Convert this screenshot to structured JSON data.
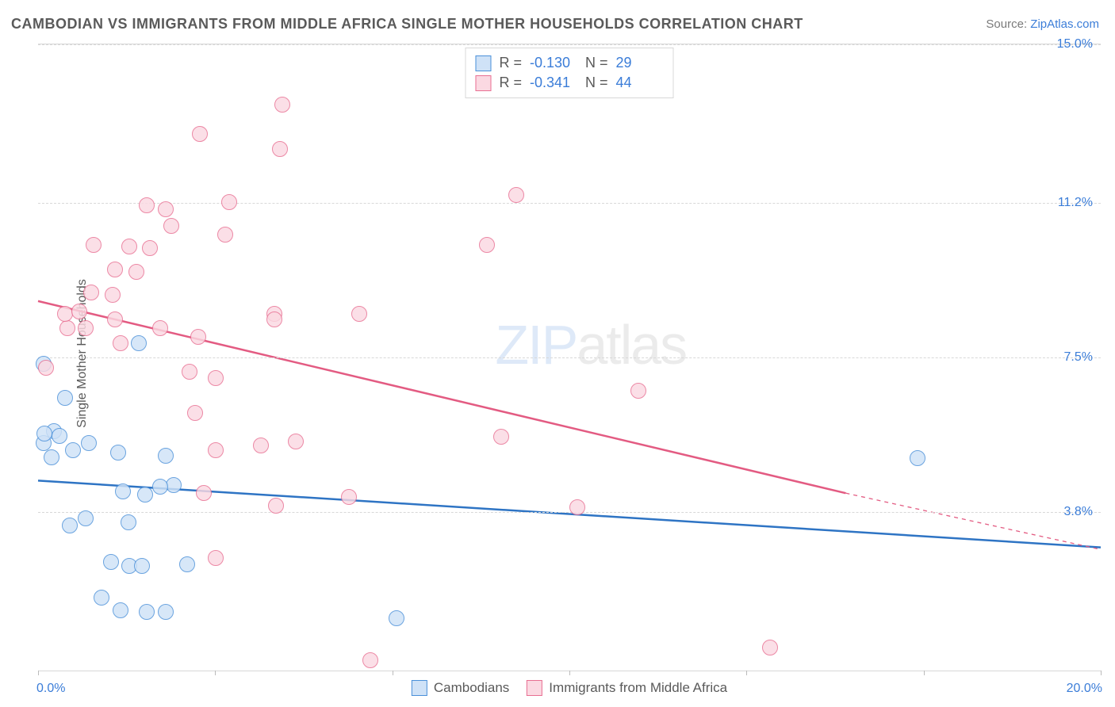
{
  "title": "CAMBODIAN VS IMMIGRANTS FROM MIDDLE AFRICA SINGLE MOTHER HOUSEHOLDS CORRELATION CHART",
  "source_label": "Source: ",
  "source_name": "ZipAtlas.com",
  "ylabel": "Single Mother Households",
  "watermark_a": "ZIP",
  "watermark_b": "atlas",
  "chart": {
    "type": "scatter",
    "xlim": [
      0.0,
      20.0
    ],
    "ylim": [
      0.0,
      15.0
    ],
    "xmin_label": "0.0%",
    "xmax_label": "20.0%",
    "yticks": [
      3.8,
      7.5,
      11.2,
      15.0
    ],
    "ytick_labels": [
      "3.8%",
      "7.5%",
      "11.2%",
      "15.0%"
    ],
    "xtick_marks": [
      0,
      3.33,
      6.67,
      10.0,
      13.33,
      16.67,
      20.0
    ],
    "background_color": "#ffffff",
    "grid_color": "#d8d8d8"
  },
  "series": [
    {
      "key": "blue",
      "name": "Cambodians",
      "fill": "#cfe2f7",
      "stroke": "#4a90d9",
      "line_color": "#2e74c4",
      "r_label": "R =",
      "r_value": "-0.130",
      "n_label": "N =",
      "n_value": "29",
      "marker_radius": 10,
      "line_width": 2.5,
      "trend": {
        "x1": 0.0,
        "y1": 4.55,
        "x2": 20.0,
        "y2": 2.95
      },
      "points": [
        [
          0.1,
          7.35
        ],
        [
          0.5,
          6.53
        ],
        [
          0.3,
          5.73
        ],
        [
          0.1,
          5.45
        ],
        [
          0.4,
          5.62
        ],
        [
          0.65,
          5.28
        ],
        [
          0.95,
          5.45
        ],
        [
          1.5,
          5.22
        ],
        [
          0.25,
          5.1
        ],
        [
          0.12,
          5.68
        ],
        [
          2.4,
          5.15
        ],
        [
          2.55,
          4.45
        ],
        [
          2.3,
          4.4
        ],
        [
          1.6,
          4.3
        ],
        [
          2.02,
          4.22
        ],
        [
          0.9,
          3.65
        ],
        [
          1.7,
          3.55
        ],
        [
          0.6,
          3.48
        ],
        [
          1.38,
          2.6
        ],
        [
          1.72,
          2.5
        ],
        [
          1.95,
          2.5
        ],
        [
          2.8,
          2.55
        ],
        [
          1.2,
          1.75
        ],
        [
          1.55,
          1.45
        ],
        [
          2.05,
          1.4
        ],
        [
          2.4,
          1.4
        ],
        [
          6.75,
          1.25
        ],
        [
          1.9,
          7.85
        ],
        [
          16.55,
          5.08
        ]
      ]
    },
    {
      "key": "pink",
      "name": "Immigrants from Middle Africa",
      "fill": "#fbd9e2",
      "stroke": "#e86f92",
      "line_color": "#e35b82",
      "r_label": "R =",
      "r_value": "-0.341",
      "n_label": "N =",
      "n_value": "44",
      "marker_radius": 10,
      "line_width": 2.5,
      "trend": {
        "x1": 0.0,
        "y1": 8.85,
        "x2": 15.2,
        "y2": 4.25
      },
      "trend_dash": {
        "x1": 15.2,
        "y1": 4.25,
        "x2": 20.0,
        "y2": 2.9
      },
      "points": [
        [
          0.15,
          7.25
        ],
        [
          0.55,
          8.2
        ],
        [
          0.5,
          8.55
        ],
        [
          0.9,
          8.2
        ],
        [
          0.78,
          8.6
        ],
        [
          1.0,
          9.05
        ],
        [
          1.4,
          9.0
        ],
        [
          1.45,
          9.6
        ],
        [
          1.85,
          9.55
        ],
        [
          1.05,
          10.2
        ],
        [
          1.72,
          10.15
        ],
        [
          2.1,
          10.12
        ],
        [
          2.5,
          10.65
        ],
        [
          2.05,
          11.15
        ],
        [
          2.4,
          11.05
        ],
        [
          3.6,
          11.22
        ],
        [
          1.45,
          8.42
        ],
        [
          1.55,
          7.85
        ],
        [
          2.3,
          8.2
        ],
        [
          3.02,
          8.0
        ],
        [
          2.85,
          7.15
        ],
        [
          3.35,
          7.0
        ],
        [
          2.95,
          6.18
        ],
        [
          3.35,
          5.28
        ],
        [
          4.2,
          5.4
        ],
        [
          4.85,
          5.48
        ],
        [
          3.12,
          4.25
        ],
        [
          4.48,
          3.95
        ],
        [
          3.35,
          2.7
        ],
        [
          4.45,
          8.55
        ],
        [
          4.45,
          8.42
        ],
        [
          6.05,
          8.55
        ],
        [
          5.85,
          4.15
        ],
        [
          6.25,
          0.25
        ],
        [
          4.55,
          12.5
        ],
        [
          3.05,
          12.85
        ],
        [
          4.6,
          13.55
        ],
        [
          3.52,
          10.45
        ],
        [
          8.45,
          10.2
        ],
        [
          9.0,
          11.4
        ],
        [
          8.72,
          5.6
        ],
        [
          10.15,
          3.92
        ],
        [
          11.3,
          6.7
        ],
        [
          13.77,
          0.55
        ]
      ]
    }
  ],
  "legend": {
    "series1": "Cambodians",
    "series2": "Immigrants from Middle Africa"
  }
}
